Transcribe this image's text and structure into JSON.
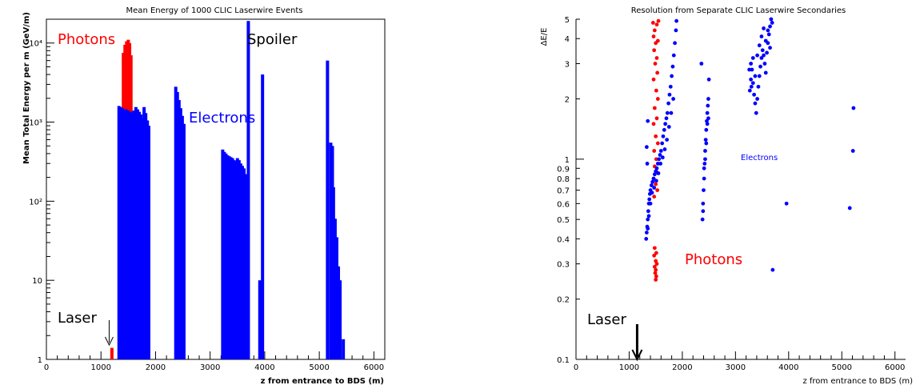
{
  "chart_data": [
    {
      "type": "bar",
      "title": "Mean Energy of 1000 CLIC Laserwire Events",
      "xlabel": "z from entrance to BDS (m)",
      "ylabel": "Mean Total Energy per m (GeV/m)",
      "xlim": [
        0,
        6200
      ],
      "ylim": [
        1,
        20000
      ],
      "yscale": "log",
      "x_ticks": [
        "0",
        "1000",
        "2000",
        "3000",
        "4000",
        "5000",
        "6000"
      ],
      "y_ticks": [
        "1",
        "10",
        "10²",
        "10³",
        "10⁴"
      ],
      "annotations": {
        "photons": "Photons",
        "electrons": "Electrons",
        "spoiler": "Spoiler",
        "laser": "Laser"
      },
      "laser_z": 1150,
      "series": [
        {
          "name": "Photons",
          "color": "#ff0000",
          "bars": [
            [
              1200,
              1.4
            ],
            [
              1410,
              7500
            ],
            [
              1440,
              9500
            ],
            [
              1470,
              10500
            ],
            [
              1500,
              11000
            ],
            [
              1525,
              10000
            ],
            [
              1550,
              7000
            ]
          ]
        },
        {
          "name": "Electrons",
          "color": "#0000ff",
          "bars": [
            [
              1330,
              1600
            ],
            [
              1360,
              1550
            ],
            [
              1390,
              1500
            ],
            [
              1420,
              1450
            ],
            [
              1460,
              1450
            ],
            [
              1500,
              1400
            ],
            [
              1540,
              1350
            ],
            [
              1575,
              1300
            ],
            [
              1605,
              1400
            ],
            [
              1640,
              1550
            ],
            [
              1670,
              1450
            ],
            [
              1700,
              1350
            ],
            [
              1730,
              1250
            ],
            [
              1760,
              1100
            ],
            [
              1790,
              1550
            ],
            [
              1820,
              1300
            ],
            [
              1850,
              1050
            ],
            [
              1875,
              900
            ],
            [
              2370,
              2800
            ],
            [
              2400,
              2400
            ],
            [
              2430,
              1900
            ],
            [
              2460,
              1500
            ],
            [
              2490,
              1200
            ],
            [
              2520,
              950
            ],
            [
              3230,
              450
            ],
            [
              3260,
              420
            ],
            [
              3290,
              400
            ],
            [
              3320,
              380
            ],
            [
              3350,
              370
            ],
            [
              3380,
              360
            ],
            [
              3410,
              350
            ],
            [
              3440,
              330
            ],
            [
              3470,
              320
            ],
            [
              3500,
              350
            ],
            [
              3530,
              330
            ],
            [
              3560,
              300
            ],
            [
              3590,
              280
            ],
            [
              3620,
              260
            ],
            [
              3650,
              220
            ],
            [
              3700,
              19000
            ],
            [
              3960,
              4000
            ],
            [
              3910,
              10
            ],
            [
              5150,
              6000
            ],
            [
              5210,
              550
            ],
            [
              5240,
              500
            ],
            [
              5260,
              150
            ],
            [
              5290,
              60
            ],
            [
              5320,
              35
            ],
            [
              5350,
              15
            ],
            [
              5380,
              10
            ],
            [
              5440,
              1.8
            ]
          ]
        }
      ]
    },
    {
      "type": "scatter",
      "title": "Resolution from Separate CLIC Laserwire Secondaries",
      "xlabel": "z from entrance to BDS (m)",
      "ylabel": "ΔE/E",
      "xlim": [
        0,
        6200
      ],
      "ylim": [
        0.1,
        5
      ],
      "yscale": "log",
      "x_ticks": [
        "0",
        "1000",
        "2000",
        "3000",
        "4000",
        "5000",
        "6000"
      ],
      "y_ticks": [
        "0.1",
        "0.2",
        "0.3",
        "0.4",
        "0.5",
        "0.6",
        "0.7",
        "0.8",
        "0.9",
        "1",
        "2",
        "3",
        "4",
        "5"
      ],
      "annotations": {
        "photons": "Photons",
        "electrons": "Electrons",
        "laser": "Laser"
      },
      "laser_z": 1150,
      "series": [
        {
          "name": "Photons",
          "color": "#ff0000",
          "points": [
            [
              1450,
              4.8
            ],
            [
              1480,
              4.4
            ],
            [
              1520,
              4.7
            ],
            [
              1550,
              4.9
            ],
            [
              1460,
              4.1
            ],
            [
              1500,
              3.8
            ],
            [
              1540,
              3.9
            ],
            [
              1470,
              3.5
            ],
            [
              1520,
              3.2
            ],
            [
              1490,
              3.0
            ],
            [
              1530,
              2.7
            ],
            [
              1460,
              2.5
            ],
            [
              1510,
              2.2
            ],
            [
              1540,
              2.0
            ],
            [
              1480,
              1.8
            ],
            [
              1520,
              1.6
            ],
            [
              1460,
              1.5
            ],
            [
              1500,
              1.3
            ],
            [
              1540,
              1.2
            ],
            [
              1470,
              1.1
            ],
            [
              1510,
              1.0
            ],
            [
              1480,
              0.92
            ],
            [
              1520,
              0.86
            ],
            [
              1460,
              0.8
            ],
            [
              1500,
              0.75
            ],
            [
              1530,
              0.7
            ],
            [
              1470,
              0.65
            ],
            [
              1480,
              0.36
            ],
            [
              1510,
              0.34
            ],
            [
              1470,
              0.33
            ],
            [
              1500,
              0.31
            ],
            [
              1520,
              0.3
            ],
            [
              1480,
              0.29
            ],
            [
              1500,
              0.28
            ],
            [
              1490,
              0.27
            ],
            [
              1510,
              0.26
            ],
            [
              1500,
              0.25
            ]
          ]
        },
        {
          "name": "Electrons",
          "color": "#0000ff",
          "points": [
            [
              1320,
              0.4
            ],
            [
              1330,
              0.43
            ],
            [
              1340,
              0.46
            ],
            [
              1350,
              0.5
            ],
            [
              1360,
              0.55
            ],
            [
              1370,
              0.6
            ],
            [
              1380,
              0.63
            ],
            [
              1390,
              0.67
            ],
            [
              1400,
              0.7
            ],
            [
              1420,
              0.74
            ],
            [
              1440,
              0.77
            ],
            [
              1460,
              0.8
            ],
            [
              1480,
              0.84
            ],
            [
              1500,
              0.87
            ],
            [
              1520,
              0.9
            ],
            [
              1540,
              0.95
            ],
            [
              1560,
              1.0
            ],
            [
              1580,
              1.05
            ],
            [
              1600,
              1.1
            ],
            [
              1620,
              1.2
            ],
            [
              1640,
              1.3
            ],
            [
              1660,
              1.4
            ],
            [
              1680,
              1.5
            ],
            [
              1700,
              1.6
            ],
            [
              1720,
              1.7
            ],
            [
              1740,
              1.9
            ],
            [
              1760,
              2.1
            ],
            [
              1780,
              2.3
            ],
            [
              1800,
              2.6
            ],
            [
              1820,
              2.9
            ],
            [
              1840,
              3.3
            ],
            [
              1860,
              3.8
            ],
            [
              1880,
              4.4
            ],
            [
              1890,
              4.9
            ],
            [
              1350,
              0.45
            ],
            [
              1370,
              0.52
            ],
            [
              1400,
              0.6
            ],
            [
              1430,
              0.68
            ],
            [
              1470,
              0.72
            ],
            [
              1510,
              0.78
            ],
            [
              1550,
              0.85
            ],
            [
              1590,
              0.95
            ],
            [
              1630,
              1.02
            ],
            [
              1670,
              1.12
            ],
            [
              1710,
              1.25
            ],
            [
              1750,
              1.45
            ],
            [
              1790,
              1.7
            ],
            [
              1830,
              2.0
            ],
            [
              1350,
              1.55
            ],
            [
              1330,
              1.15
            ],
            [
              1340,
              0.95
            ],
            [
              2360,
              3.0
            ],
            [
              2380,
              0.5
            ],
            [
              2390,
              0.6
            ],
            [
              2400,
              0.7
            ],
            [
              2410,
              0.8
            ],
            [
              2420,
              0.95
            ],
            [
              2430,
              1.1
            ],
            [
              2440,
              1.25
            ],
            [
              2450,
              1.4
            ],
            [
              2460,
              1.55
            ],
            [
              2470,
              1.7
            ],
            [
              2480,
              1.85
            ],
            [
              2490,
              2.0
            ],
            [
              2500,
              2.5
            ],
            [
              2390,
              0.55
            ],
            [
              2410,
              0.9
            ],
            [
              2430,
              1.0
            ],
            [
              2450,
              1.2
            ],
            [
              2470,
              1.5
            ],
            [
              2490,
              1.6
            ],
            [
              3270,
              2.2
            ],
            [
              3290,
              2.5
            ],
            [
              3310,
              2.8
            ],
            [
              3330,
              2.4
            ],
            [
              3350,
              2.1
            ],
            [
              3370,
              1.9
            ],
            [
              3390,
              1.7
            ],
            [
              3410,
              2.0
            ],
            [
              3430,
              2.3
            ],
            [
              3450,
              2.6
            ],
            [
              3470,
              2.9
            ],
            [
              3490,
              3.2
            ],
            [
              3510,
              3.5
            ],
            [
              3530,
              3.3
            ],
            [
              3550,
              3.0
            ],
            [
              3570,
              2.7
            ],
            [
              3590,
              3.4
            ],
            [
              3610,
              3.8
            ],
            [
              3630,
              4.2
            ],
            [
              3650,
              4.6
            ],
            [
              3670,
              5.0
            ],
            [
              3690,
              4.8
            ],
            [
              3290,
              3.0
            ],
            [
              3330,
              3.2
            ],
            [
              3370,
              2.6
            ],
            [
              3410,
              3.3
            ],
            [
              3450,
              3.7
            ],
            [
              3490,
              4.1
            ],
            [
              3530,
              4.5
            ],
            [
              3570,
              3.9
            ],
            [
              3610,
              4.4
            ],
            [
              3650,
              3.6
            ],
            [
              3260,
              2.8
            ],
            [
              3300,
              2.3
            ],
            [
              3700,
              0.28
            ],
            [
              3960,
              0.6
            ],
            [
              5150,
              0.57
            ],
            [
              5210,
              1.1
            ],
            [
              5220,
              1.8
            ]
          ]
        }
      ]
    }
  ]
}
